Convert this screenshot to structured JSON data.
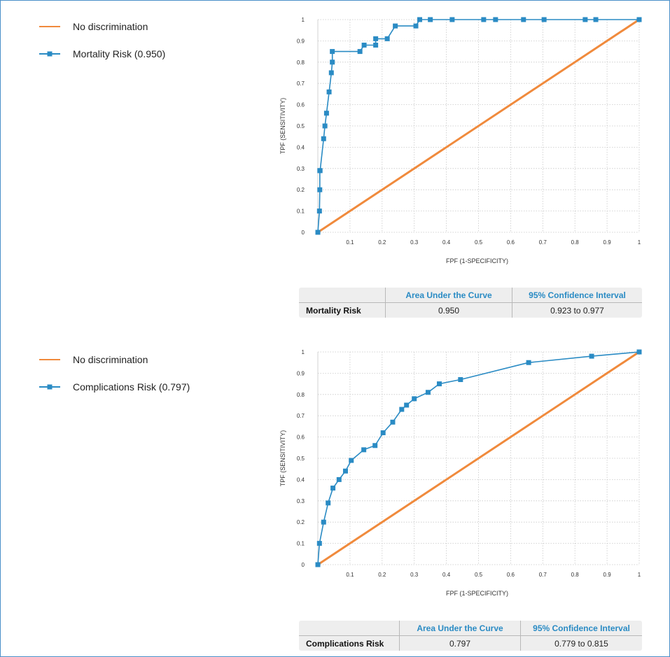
{
  "panels": [
    {
      "legend": [
        {
          "label": "No discrimination",
          "color": "#f08a3c",
          "style": "line"
        },
        {
          "label": "Mortality Risk (0.950)",
          "color": "#2a8bc4",
          "style": "line-square"
        }
      ],
      "stats": {
        "headers": [
          "Area Under the Curve",
          "95% Confidence Interval"
        ],
        "row_label": "Mortality Risk",
        "auc": "0.950",
        "ci": "0.923 to 0.977"
      }
    },
    {
      "legend": [
        {
          "label": "No discrimination",
          "color": "#f08a3c",
          "style": "line"
        },
        {
          "label": "Complications Risk (0.797)",
          "color": "#2a8bc4",
          "style": "line-square"
        }
      ],
      "stats": {
        "headers": [
          "Area Under the Curve",
          "95% Confidence Interval"
        ],
        "row_label": "Complications Risk",
        "auc": "0.797",
        "ci": "0.779 to 0.815"
      }
    }
  ],
  "chart_data": [
    {
      "type": "line",
      "xlabel": "FPF (1-SPECIFICITY)",
      "ylabel": "TPF (SENSITIVITY)",
      "xlim": [
        0,
        1
      ],
      "ylim": [
        0,
        1
      ],
      "x_ticks": [
        "0.1",
        "0.2",
        "0.3",
        "0.4",
        "0.5",
        "0.6",
        "0.7",
        "0.8",
        "0.9",
        "1"
      ],
      "y_ticks": [
        "0",
        "0.1",
        "0.2",
        "0.3",
        "0.4",
        "0.5",
        "0.6",
        "0.7",
        "0.8",
        "0.9",
        "1"
      ],
      "grid": true,
      "series": [
        {
          "name": "No discrimination",
          "color": "#f08a3c",
          "x": [
            0,
            1
          ],
          "y": [
            0,
            1
          ]
        },
        {
          "name": "Mortality Risk (0.950)",
          "color": "#2a8bc4",
          "x": [
            0,
            0.005,
            0.006,
            0.006,
            0.007,
            0.018,
            0.022,
            0.027,
            0.035,
            0.042,
            0.045,
            0.045,
            0.131,
            0.144,
            0.18,
            0.18,
            0.216,
            0.241,
            0.305,
            0.317,
            0.35,
            0.418,
            0.516,
            0.553,
            0.64,
            0.704,
            0.832,
            0.865,
            1.0
          ],
          "y": [
            0,
            0.1,
            0.2,
            0.29,
            0.29,
            0.44,
            0.5,
            0.56,
            0.66,
            0.75,
            0.8,
            0.85,
            0.85,
            0.88,
            0.88,
            0.91,
            0.91,
            0.97,
            0.97,
            1.0,
            1.0,
            1.0,
            1.0,
            1.0,
            1.0,
            1.0,
            1.0,
            1.0,
            1.0
          ]
        }
      ]
    },
    {
      "type": "line",
      "xlabel": "FPF (1-SPECIFICITY)",
      "ylabel": "TPF (SENSITIVITY)",
      "xlim": [
        0,
        1
      ],
      "ylim": [
        0,
        1
      ],
      "x_ticks": [
        "0.1",
        "0.2",
        "0.3",
        "0.4",
        "0.5",
        "0.6",
        "0.7",
        "0.8",
        "0.9",
        "1"
      ],
      "y_ticks": [
        "0",
        "0.1",
        "0.2",
        "0.3",
        "0.4",
        "0.5",
        "0.6",
        "0.7",
        "0.8",
        "0.9",
        "1"
      ],
      "grid": true,
      "series": [
        {
          "name": "No discrimination",
          "color": "#f08a3c",
          "x": [
            0,
            1
          ],
          "y": [
            0,
            1
          ]
        },
        {
          "name": "Complications Risk (0.797)",
          "color": "#2a8bc4",
          "x": [
            0,
            0.005,
            0.018,
            0.032,
            0.047,
            0.066,
            0.086,
            0.104,
            0.143,
            0.178,
            0.203,
            0.233,
            0.261,
            0.276,
            0.3,
            0.343,
            0.378,
            0.444,
            0.656,
            0.852,
            1.0
          ],
          "y": [
            0,
            0.1,
            0.2,
            0.29,
            0.36,
            0.4,
            0.44,
            0.49,
            0.54,
            0.56,
            0.62,
            0.67,
            0.73,
            0.75,
            0.78,
            0.81,
            0.85,
            0.87,
            0.95,
            0.98,
            1.0
          ]
        }
      ]
    }
  ]
}
